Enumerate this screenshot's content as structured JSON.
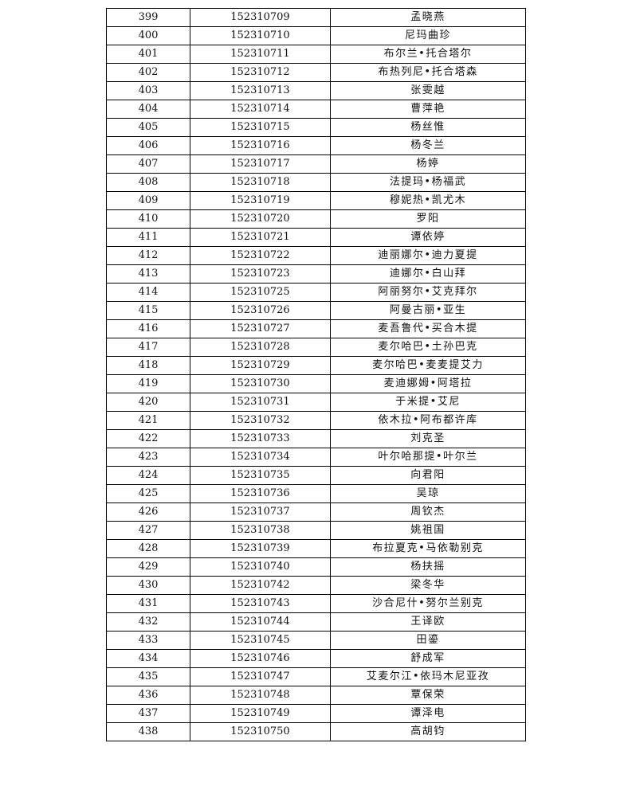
{
  "rows": [
    {
      "no": "399",
      "id": "152310709",
      "name": "孟晓燕"
    },
    {
      "no": "400",
      "id": "152310710",
      "name": "尼玛曲珍"
    },
    {
      "no": "401",
      "id": "152310711",
      "name": "布尔兰•托合塔尔"
    },
    {
      "no": "402",
      "id": "152310712",
      "name": "布热列尼•托合塔森"
    },
    {
      "no": "403",
      "id": "152310713",
      "name": "张雯越"
    },
    {
      "no": "404",
      "id": "152310714",
      "name": "曹萍艳"
    },
    {
      "no": "405",
      "id": "152310715",
      "name": "杨丝惟"
    },
    {
      "no": "406",
      "id": "152310716",
      "name": "杨冬兰"
    },
    {
      "no": "407",
      "id": "152310717",
      "name": "杨婷"
    },
    {
      "no": "408",
      "id": "152310718",
      "name": "法提玛•杨福武"
    },
    {
      "no": "409",
      "id": "152310719",
      "name": "穆妮热•凯尤木"
    },
    {
      "no": "410",
      "id": "152310720",
      "name": "罗阳"
    },
    {
      "no": "411",
      "id": "152310721",
      "name": "谭依婷"
    },
    {
      "no": "412",
      "id": "152310722",
      "name": "迪丽娜尔•迪力夏提"
    },
    {
      "no": "413",
      "id": "152310723",
      "name": "迪娜尔•白山拜"
    },
    {
      "no": "414",
      "id": "152310725",
      "name": "阿丽努尔•艾克拜尔"
    },
    {
      "no": "415",
      "id": "152310726",
      "name": "阿曼古丽•亚生"
    },
    {
      "no": "416",
      "id": "152310727",
      "name": "麦吾鲁代•买合木提"
    },
    {
      "no": "417",
      "id": "152310728",
      "name": "麦尔哈巴•土孙巴克"
    },
    {
      "no": "418",
      "id": "152310729",
      "name": "麦尔哈巴•麦麦提艾力"
    },
    {
      "no": "419",
      "id": "152310730",
      "name": "麦迪娜姆•阿塔拉"
    },
    {
      "no": "420",
      "id": "152310731",
      "name": "于米提•艾尼"
    },
    {
      "no": "421",
      "id": "152310732",
      "name": "依木拉•阿布都许库"
    },
    {
      "no": "422",
      "id": "152310733",
      "name": "刘克圣"
    },
    {
      "no": "423",
      "id": "152310734",
      "name": "叶尔哈那提•叶尔兰"
    },
    {
      "no": "424",
      "id": "152310735",
      "name": "向君阳"
    },
    {
      "no": "425",
      "id": "152310736",
      "name": "吴琼"
    },
    {
      "no": "426",
      "id": "152310737",
      "name": "周钦杰"
    },
    {
      "no": "427",
      "id": "152310738",
      "name": "姚祖国"
    },
    {
      "no": "428",
      "id": "152310739",
      "name": "布拉夏克•马依勒别克"
    },
    {
      "no": "429",
      "id": "152310740",
      "name": "杨扶摇"
    },
    {
      "no": "430",
      "id": "152310742",
      "name": "梁冬华"
    },
    {
      "no": "431",
      "id": "152310743",
      "name": "沙合尼什•努尔兰别克"
    },
    {
      "no": "432",
      "id": "152310744",
      "name": "王译欧"
    },
    {
      "no": "433",
      "id": "152310745",
      "name": "田鎏"
    },
    {
      "no": "434",
      "id": "152310746",
      "name": "舒成军"
    },
    {
      "no": "435",
      "id": "152310747",
      "name": "艾麦尔江•依玛木尼亚孜"
    },
    {
      "no": "436",
      "id": "152310748",
      "name": "覃保荣"
    },
    {
      "no": "437",
      "id": "152310749",
      "name": "谭泽电"
    },
    {
      "no": "438",
      "id": "152310750",
      "name": "高胡钧"
    }
  ]
}
